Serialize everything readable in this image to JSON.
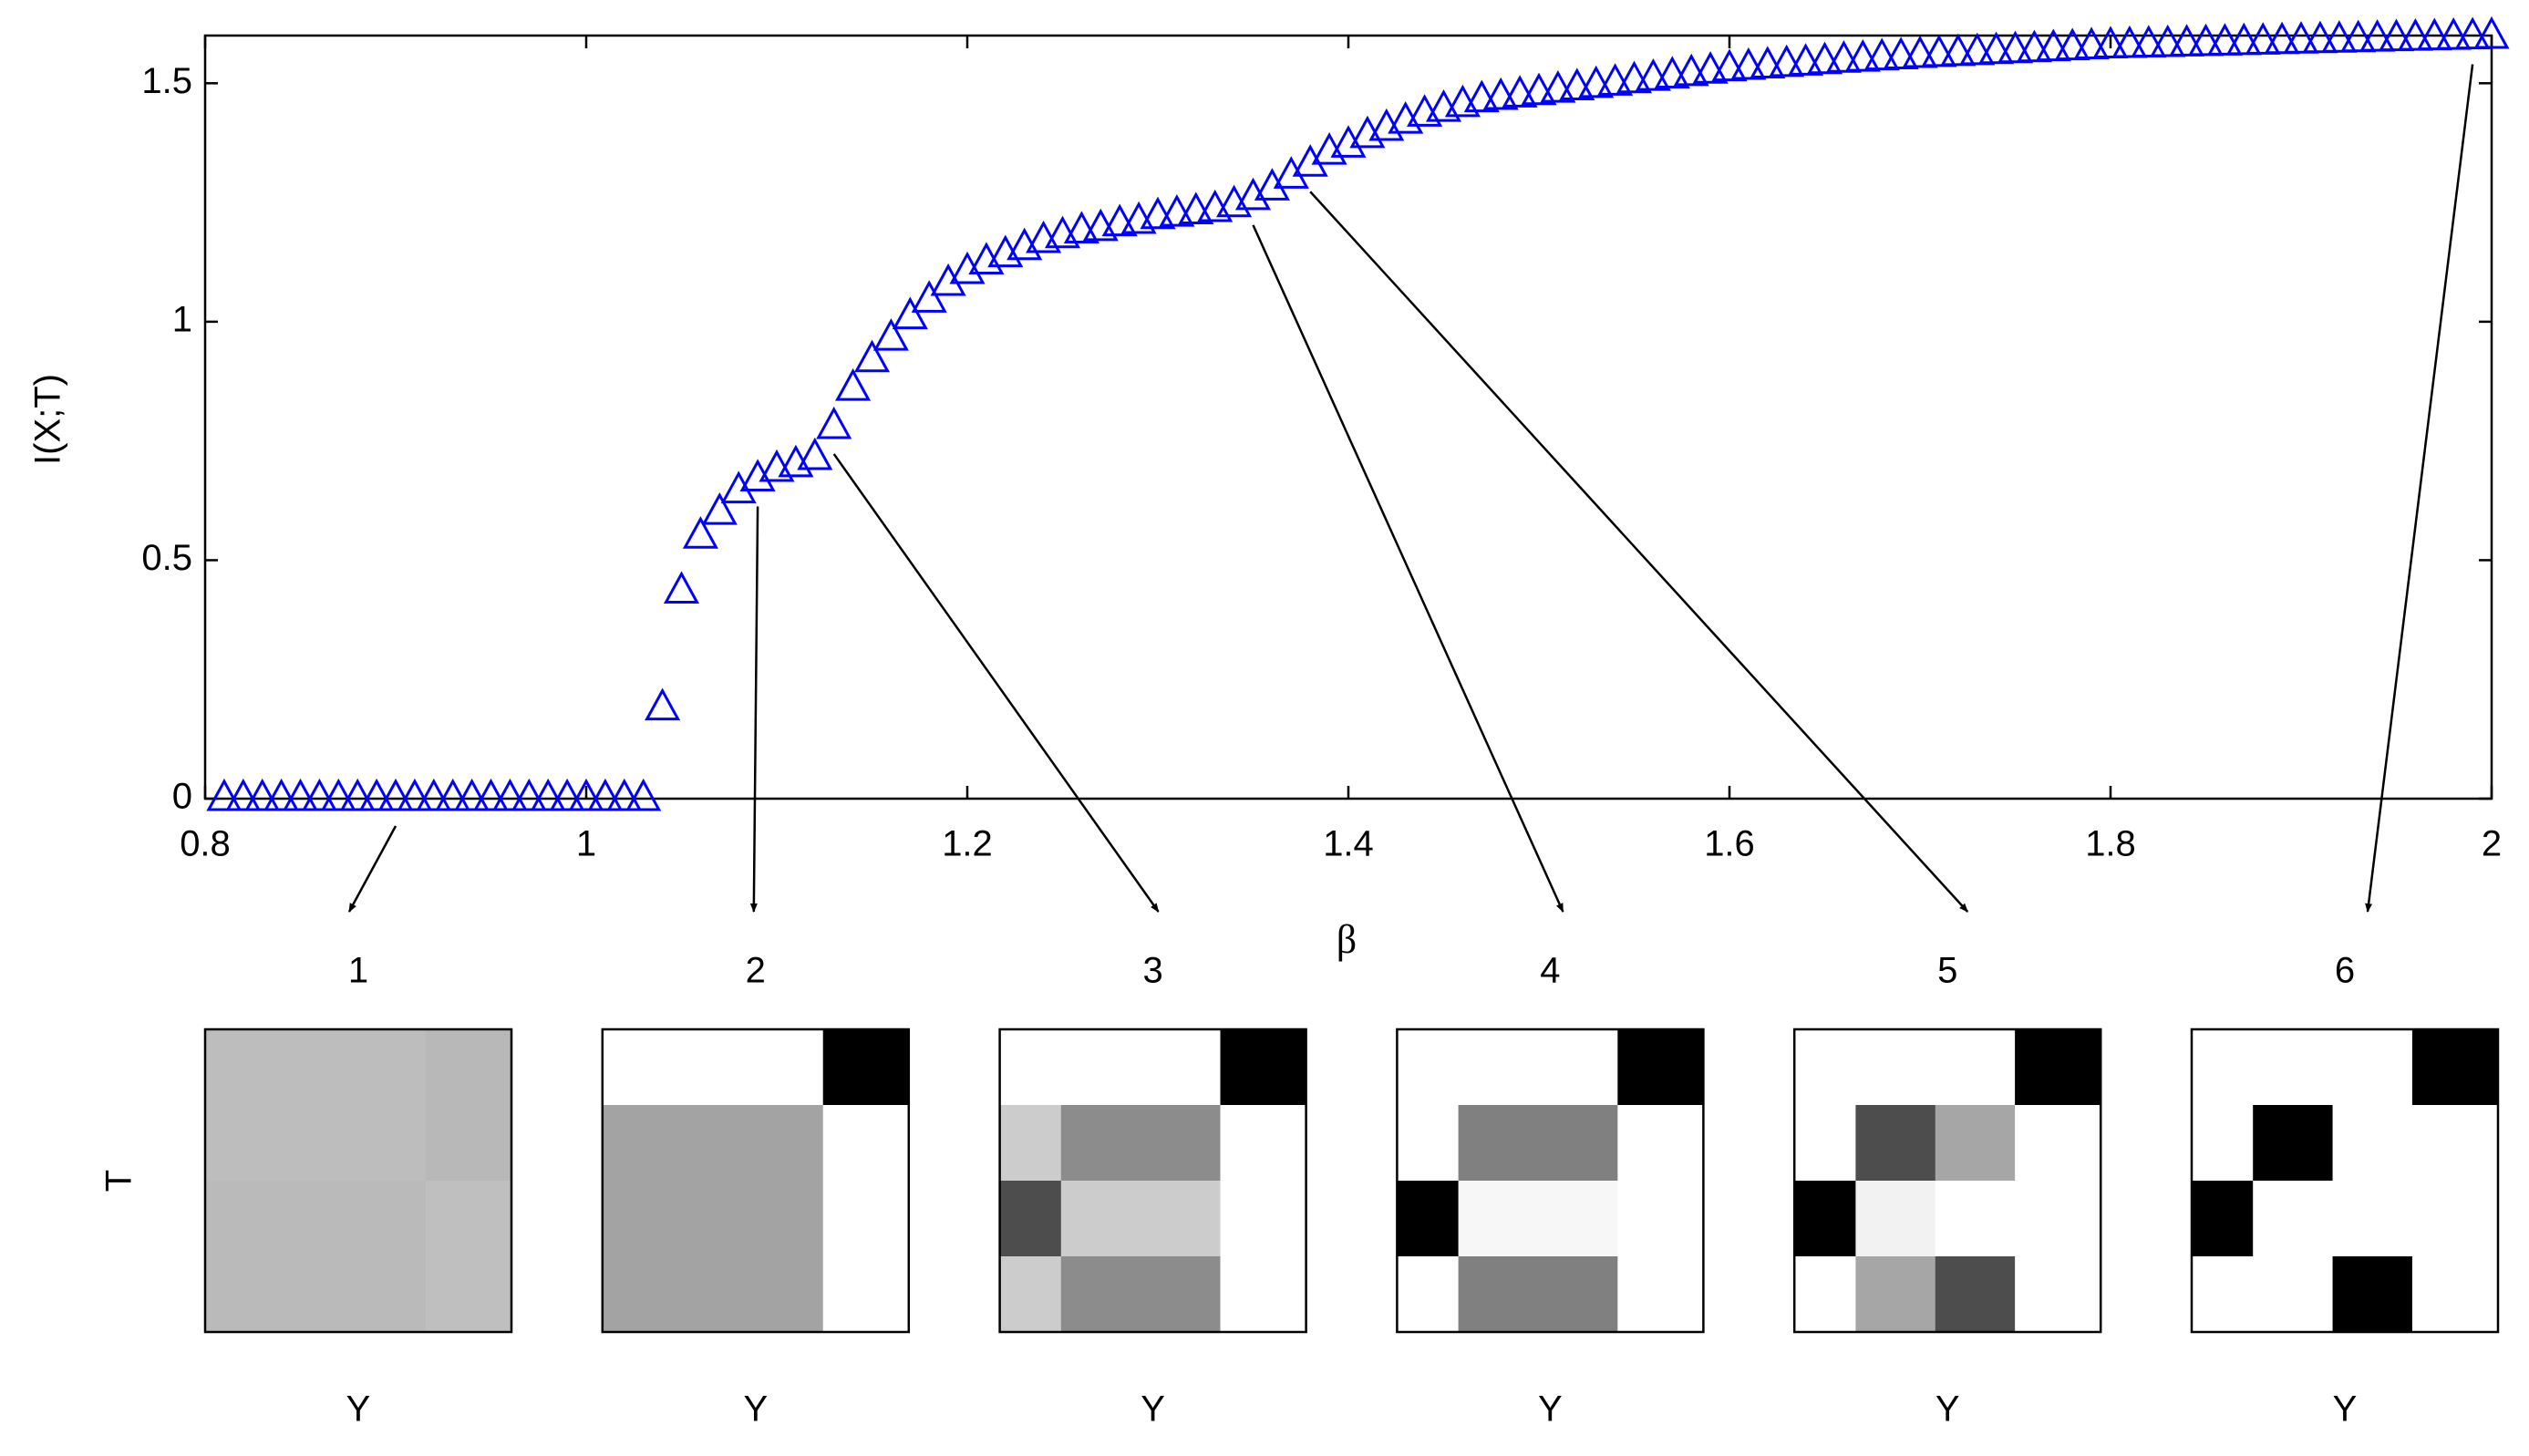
{
  "chart_data": [
    {
      "type": "scatter",
      "x_label": "β",
      "y_label": "I(X;T)",
      "color": "#0000ff",
      "marker": "triangle",
      "xlim": [
        0.8,
        2
      ],
      "ylim": [
        0,
        1.6
      ],
      "xticks": [
        0.8,
        1,
        1.2,
        1.4,
        1.6,
        1.8,
        2
      ],
      "yticks": [
        0,
        0.5,
        1,
        1.5
      ],
      "x": [
        0.81,
        0.82,
        0.83,
        0.84,
        0.85,
        0.86,
        0.87,
        0.88,
        0.89,
        0.9,
        0.91,
        0.92,
        0.93,
        0.94,
        0.95,
        0.96,
        0.97,
        0.98,
        0.99,
        1.0,
        1.01,
        1.02,
        1.03,
        1.04,
        1.05,
        1.06,
        1.07,
        1.08,
        1.09,
        1.1,
        1.11,
        1.12,
        1.13,
        1.14,
        1.15,
        1.16,
        1.17,
        1.18,
        1.19,
        1.2,
        1.21,
        1.22,
        1.23,
        1.24,
        1.25,
        1.26,
        1.27,
        1.28,
        1.29,
        1.3,
        1.31,
        1.32,
        1.33,
        1.34,
        1.35,
        1.36,
        1.37,
        1.38,
        1.39,
        1.4,
        1.41,
        1.42,
        1.43,
        1.44,
        1.45,
        1.46,
        1.47,
        1.48,
        1.49,
        1.5,
        1.51,
        1.52,
        1.53,
        1.54,
        1.55,
        1.56,
        1.57,
        1.58,
        1.59,
        1.6,
        1.61,
        1.62,
        1.63,
        1.64,
        1.65,
        1.66,
        1.67,
        1.68,
        1.69,
        1.7,
        1.71,
        1.72,
        1.73,
        1.74,
        1.75,
        1.76,
        1.77,
        1.78,
        1.79,
        1.8,
        1.81,
        1.82,
        1.83,
        1.84,
        1.85,
        1.86,
        1.87,
        1.88,
        1.89,
        1.9,
        1.91,
        1.92,
        1.93,
        1.94,
        1.95,
        1.96,
        1.97,
        1.98,
        1.99,
        2.0
      ],
      "values": [
        0,
        0,
        0,
        0,
        0,
        0,
        0,
        0,
        0,
        0,
        0,
        0,
        0,
        0,
        0,
        0,
        0,
        0,
        0,
        0,
        0,
        0,
        0,
        0.19,
        0.435,
        0.55,
        0.6,
        0.645,
        0.67,
        0.69,
        0.7,
        0.715,
        0.78,
        0.86,
        0.92,
        0.965,
        1.01,
        1.045,
        1.08,
        1.105,
        1.125,
        1.14,
        1.155,
        1.17,
        1.18,
        1.19,
        1.195,
        1.205,
        1.21,
        1.22,
        1.225,
        1.23,
        1.235,
        1.245,
        1.26,
        1.28,
        1.305,
        1.33,
        1.355,
        1.37,
        1.39,
        1.405,
        1.42,
        1.435,
        1.445,
        1.455,
        1.465,
        1.47,
        1.475,
        1.48,
        1.485,
        1.49,
        1.495,
        1.5,
        1.505,
        1.51,
        1.515,
        1.52,
        1.525,
        1.53,
        1.533,
        1.536,
        1.539,
        1.542,
        1.545,
        1.548,
        1.55,
        1.553,
        1.555,
        1.558,
        1.56,
        1.562,
        1.564,
        1.566,
        1.568,
        1.57,
        1.572,
        1.574,
        1.576,
        1.578,
        1.579,
        1.58,
        1.581,
        1.582,
        1.583,
        1.584,
        1.585,
        1.586,
        1.587,
        1.588,
        1.589,
        1.59,
        1.591,
        1.592,
        1.593,
        1.594,
        1.595,
        1.596,
        1.597,
        1.598
      ]
    },
    {
      "type": "heatmap",
      "title": "1",
      "x_label": "Y",
      "y_label": "T",
      "colormap": "gray_r",
      "beta": 0.9,
      "values": [
        [
          0.26,
          0.26,
          0.26,
          0.28
        ],
        [
          0.26,
          0.26,
          0.26,
          0.28
        ],
        [
          0.27,
          0.27,
          0.27,
          0.25
        ],
        [
          0.27,
          0.27,
          0.27,
          0.25
        ]
      ]
    },
    {
      "type": "heatmap",
      "title": "2",
      "x_label": "Y",
      "colormap": "gray_r",
      "beta": 1.09,
      "values": [
        [
          0,
          0,
          0,
          1
        ],
        [
          0.36,
          0.36,
          0.36,
          0
        ],
        [
          0.36,
          0.36,
          0.36,
          0
        ],
        [
          0.36,
          0.36,
          0.36,
          0
        ]
      ]
    },
    {
      "type": "heatmap",
      "title": "3",
      "x_label": "Y",
      "colormap": "gray_r",
      "beta": 1.13,
      "values": [
        [
          0,
          0,
          0,
          1
        ],
        [
          0.2,
          0.45,
          0.45,
          0
        ],
        [
          0.7,
          0.2,
          0.2,
          0
        ],
        [
          0.2,
          0.45,
          0.45,
          0
        ]
      ]
    },
    {
      "type": "heatmap",
      "title": "4",
      "x_label": "Y",
      "colormap": "gray_r",
      "beta": 1.35,
      "values": [
        [
          0,
          0,
          0,
          1
        ],
        [
          0,
          0.5,
          0.5,
          0
        ],
        [
          1,
          0.03,
          0.03,
          0
        ],
        [
          0,
          0.5,
          0.5,
          0
        ]
      ]
    },
    {
      "type": "heatmap",
      "title": "5",
      "x_label": "Y",
      "colormap": "gray_r",
      "beta": 1.38,
      "values": [
        [
          0,
          0,
          0,
          1
        ],
        [
          0,
          0.7,
          0.35,
          0
        ],
        [
          1,
          0.05,
          0,
          0
        ],
        [
          0,
          0.35,
          0.7,
          0
        ]
      ]
    },
    {
      "type": "heatmap",
      "title": "6",
      "x_label": "Y",
      "colormap": "gray_r",
      "beta": 1.99,
      "values": [
        [
          0,
          0,
          0,
          1
        ],
        [
          0,
          1,
          0,
          0
        ],
        [
          1,
          0,
          0,
          0
        ],
        [
          0,
          0,
          1,
          0
        ]
      ]
    }
  ]
}
